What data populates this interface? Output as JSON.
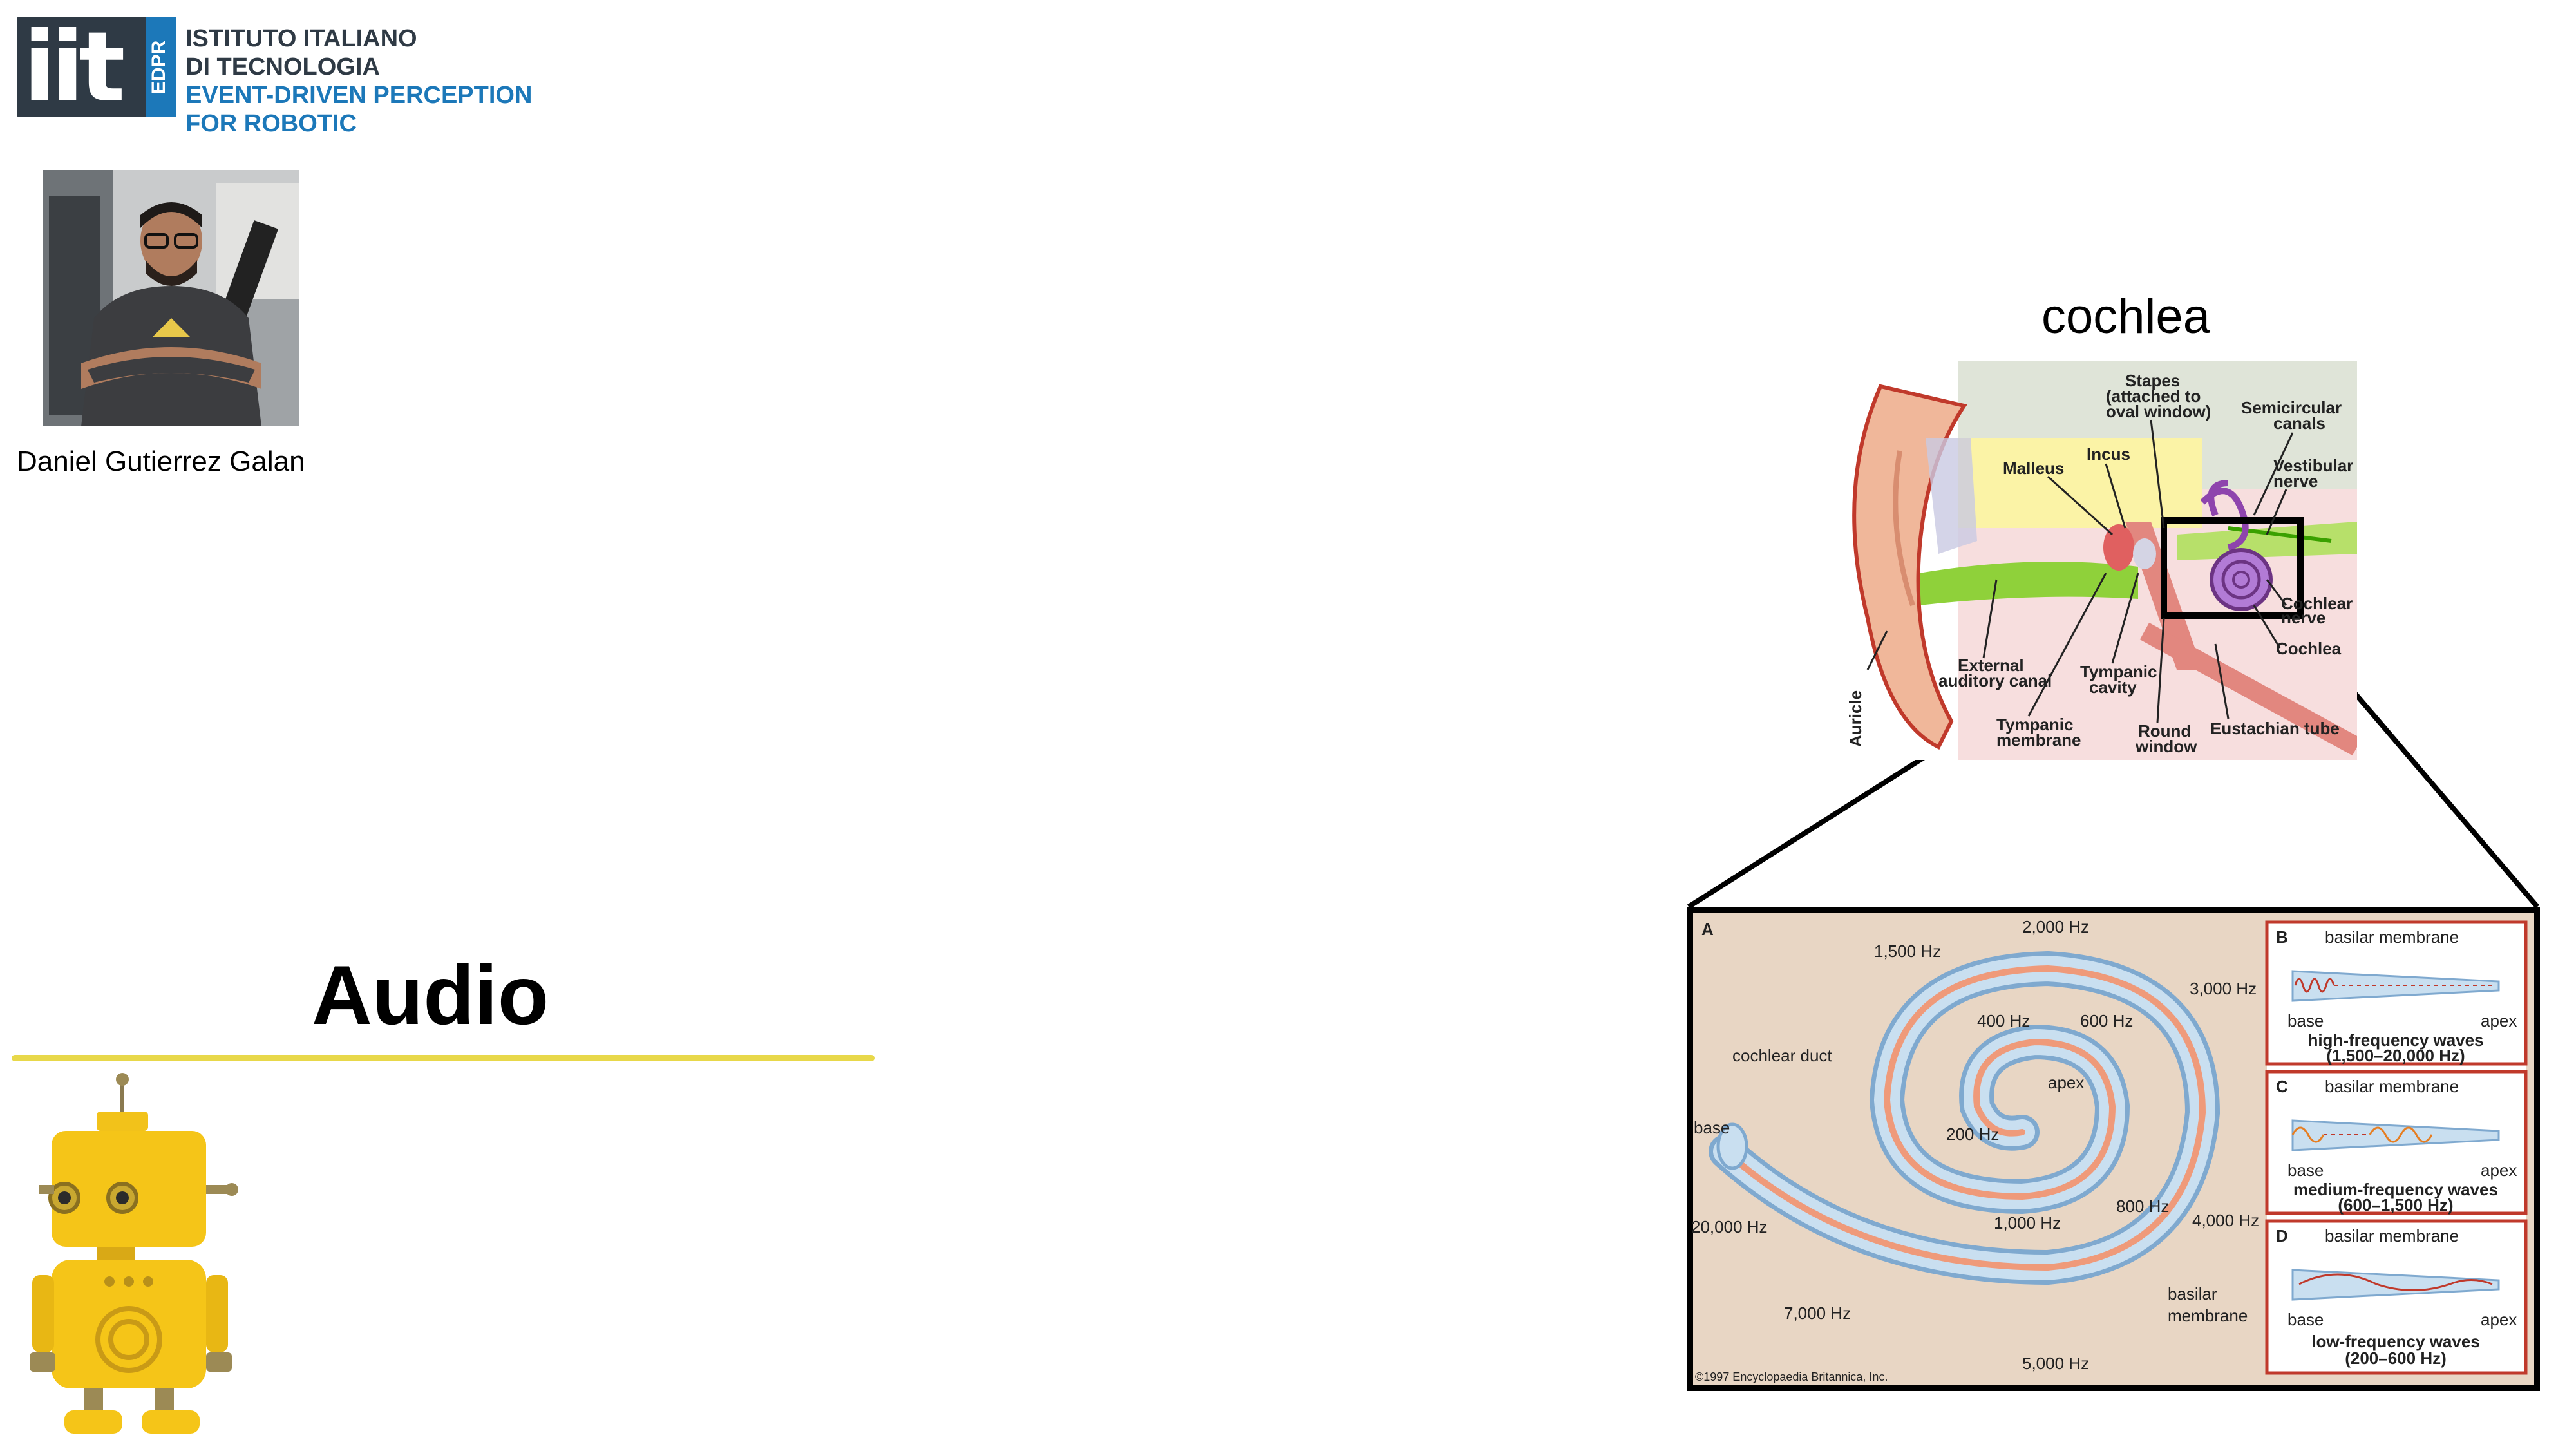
{
  "logo": {
    "mark": "iit",
    "strip": "EDPR",
    "line1": "ISTITUTO ITALIANO",
    "line2": "DI TECNOLOGIA",
    "line3": "EVENT-DRIVEN PERCEPTION",
    "line4": "FOR ROBOTIC",
    "color_dark": "#2f3a45",
    "color_blue": "#1c78b9"
  },
  "person": {
    "name": "Daniel Gutierrez Galan"
  },
  "slide": {
    "title": "Audio",
    "underline_color": "#e8d84a"
  },
  "cochlea": {
    "label": "cochlea",
    "ear_labels": {
      "stapes": "Stapes",
      "stapes2": "(attached to",
      "stapes3": "oval window)",
      "semicircular": "Semicircular",
      "semicircular2": "canals",
      "incus": "Incus",
      "malleus": "Malleus",
      "vestibular": "Vestibular",
      "vestibular2": "nerve",
      "cochlear_nerve": "Cochlear",
      "cochlear_nerve2": "nerve",
      "cochlea": "Cochlea",
      "external": "External",
      "external2": "auditory canal",
      "tympanic_cavity": "Tympanic",
      "tympanic_cavity2": "cavity",
      "tympanic_membrane": "Tympanic",
      "tympanic_membrane2": "membrane",
      "round": "Round",
      "round2": "window",
      "eustachian": "Eustachian tube",
      "auricle": "Auricle"
    },
    "spiral": {
      "panel_a": "A",
      "hz_2000": "2,000 Hz",
      "hz_1500": "1,500 Hz",
      "hz_3000": "3,000 Hz",
      "hz_400": "400 Hz",
      "hz_600": "600 Hz",
      "apex": "apex",
      "hz_200": "200 Hz",
      "cochlear_duct": "cochlear duct",
      "base": "base",
      "hz_20000": "20,000 Hz",
      "hz_800": "800 Hz",
      "hz_1000": "1,000 Hz",
      "hz_4000": "4,000 Hz",
      "basilar": "basilar",
      "basilar2": "membrane",
      "hz_7000": "7,000 Hz",
      "hz_5000": "5,000 Hz",
      "copyright": "©1997 Encyclopaedia Britannica, Inc."
    },
    "panels": [
      {
        "letter": "B",
        "membrane": "basilar membrane",
        "base": "base",
        "apex": "apex",
        "title": "high-frequency waves",
        "range": "(1,500–20,000 Hz)"
      },
      {
        "letter": "C",
        "membrane": "basilar membrane",
        "base": "base",
        "apex": "apex",
        "title": "medium-frequency waves",
        "range": "(600–1,500 Hz)"
      },
      {
        "letter": "D",
        "membrane": "basilar membrane",
        "base": "base",
        "apex": "apex",
        "title": "low-frequency waves",
        "range": "(200–600 Hz)"
      }
    ]
  }
}
